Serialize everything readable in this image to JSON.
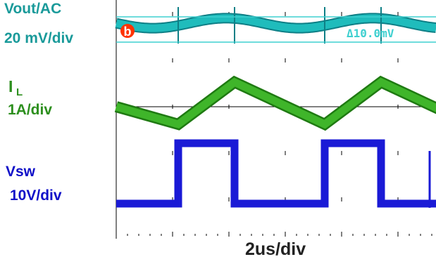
{
  "labels": {
    "vout_name": "Vout/AC",
    "vout_scale": "20 mV/div",
    "il_name": "I",
    "il_subscript": "L",
    "il_scale": "1A/div",
    "vsw_name": "Vsw",
    "vsw_scale": "10V/div",
    "time_scale": "2us/div",
    "marker": "b",
    "delta": "Δ10.0mV"
  },
  "colors": {
    "vout": "#1fbcbc",
    "vout_dark": "#0e7f86",
    "il": "#3fb52a",
    "il_dark": "#1f7a12",
    "vsw": "#1a1ad6",
    "marker": "#ff3300",
    "cursor": "#3fd0d0",
    "grid": "#000000"
  },
  "chart_data": {
    "type": "line",
    "x_unit": "div",
    "xlim": [
      0,
      10
    ],
    "period_div": 2.6,
    "series": [
      {
        "name": "Vout/AC",
        "unit": "mV",
        "x": [
          0,
          0.6,
          1.3,
          2.0,
          2.6,
          3.2,
          3.9,
          4.6,
          5.2,
          5.8,
          6.5,
          7.2,
          7.8
        ],
        "y": [
          0,
          -6,
          0,
          6,
          0,
          -6,
          0,
          6,
          0,
          -6,
          0,
          6,
          0
        ]
      },
      {
        "name": "IL",
        "unit": "A",
        "x": [
          0,
          1.1,
          2.1,
          3.7,
          4.7,
          6.3,
          7.2
        ],
        "y": [
          0,
          -0.5,
          0.7,
          -0.5,
          0.7,
          -0.5,
          0.7
        ]
      },
      {
        "name": "Vsw",
        "unit": "V",
        "x": [
          0,
          1.1,
          1.1,
          2.1,
          2.1,
          3.7,
          3.7,
          4.7,
          4.7,
          6.3,
          6.3,
          7.2,
          7.2
        ],
        "y": [
          0,
          0,
          20,
          20,
          0,
          0,
          20,
          20,
          0,
          0,
          20,
          20,
          0
        ]
      }
    ],
    "cursor_delta_mV": 10.0
  }
}
